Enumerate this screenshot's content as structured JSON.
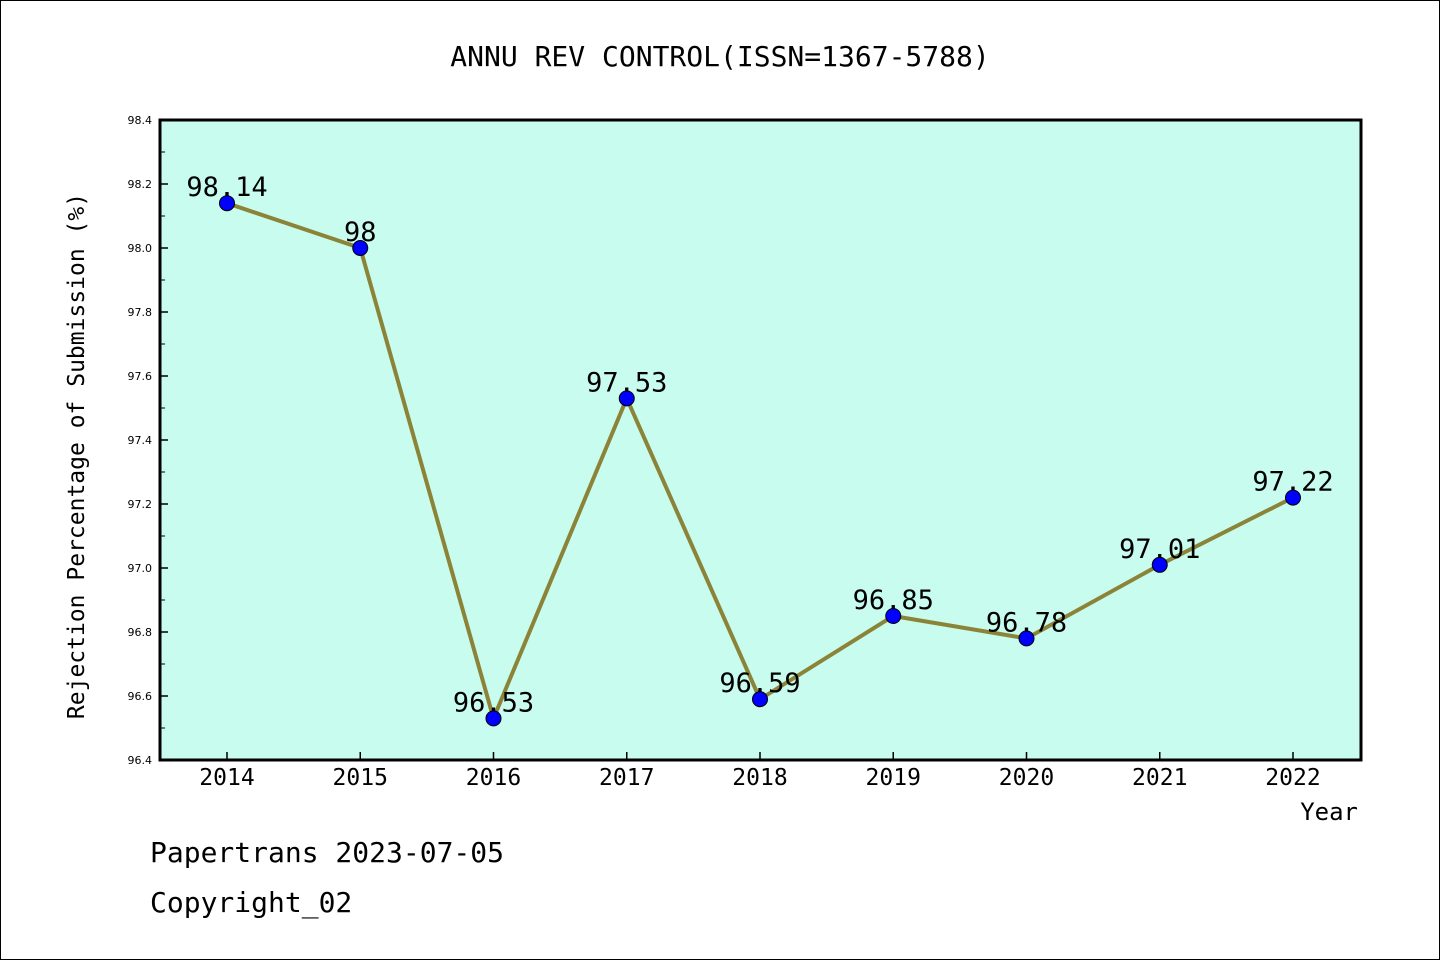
{
  "chart_data": {
    "type": "line",
    "title": "ANNU REV CONTROL(ISSN=1367-5788)",
    "xlabel": "Year",
    "ylabel": "Rejection Percentage of Submission (%)",
    "categories": [
      "2014",
      "2015",
      "2016",
      "2017",
      "2018",
      "2019",
      "2020",
      "2021",
      "2022"
    ],
    "values": [
      98.14,
      98,
      96.53,
      97.53,
      96.59,
      96.85,
      96.78,
      97.01,
      97.22
    ],
    "data_labels": [
      "98.14",
      "98",
      "96.53",
      "97.53",
      "96.59",
      "96.85",
      "96.78",
      "97.01",
      "97.22"
    ],
    "ylim": [
      96.4,
      98.4
    ],
    "yticks": [
      "96.4",
      "96.6",
      "96.8",
      "97.0",
      "97.2",
      "97.4",
      "97.6",
      "97.8",
      "98.0",
      "98.2",
      "98.4"
    ],
    "grid": false,
    "colors": {
      "plot_background": "#c8fcee",
      "line": "#8b8438",
      "marker": "#0000ff"
    }
  },
  "footer": {
    "source": "Papertrans 2023-07-05",
    "copyright": "Copyright_02"
  }
}
